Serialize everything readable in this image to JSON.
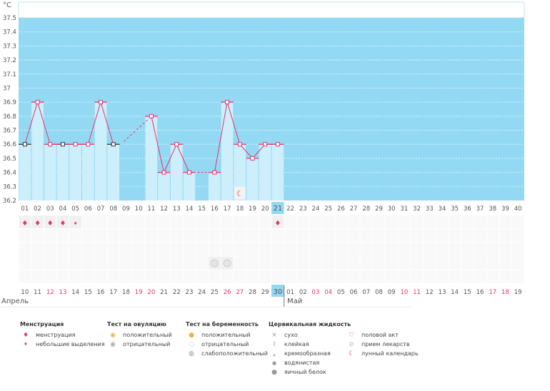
{
  "unit": "°C",
  "y_ticks": [
    "37.5",
    "37.4",
    "37.3",
    "37.2",
    "37.1",
    "37",
    "36.9",
    "36.8",
    "36.7",
    "36.6",
    "36.5",
    "36.4",
    "36.3",
    "36.2"
  ],
  "cycle_days": [
    "01",
    "02",
    "03",
    "04",
    "05",
    "06",
    "07",
    "08",
    "09",
    "10",
    "11",
    "12",
    "13",
    "14",
    "15",
    "16",
    "17",
    "18",
    "19",
    "20",
    "21",
    "22",
    "23",
    "24",
    "25",
    "26",
    "27",
    "28",
    "29",
    "30",
    "31",
    "32",
    "33",
    "34",
    "35",
    "36",
    "37",
    "38",
    "39",
    "40"
  ],
  "current_day_index": 20,
  "temperatures": [
    36.6,
    36.9,
    36.6,
    36.6,
    36.6,
    36.6,
    36.9,
    36.6,
    null,
    null,
    36.8,
    36.4,
    36.6,
    36.4,
    null,
    36.4,
    36.9,
    36.6,
    36.5,
    36.6,
    36.6
  ],
  "black_markers": [
    0,
    3,
    7
  ],
  "dates": [
    "10",
    "11",
    "12",
    "13",
    "14",
    "15",
    "16",
    "17",
    "18",
    "19",
    "20",
    "21",
    "22",
    "23",
    "24",
    "25",
    "26",
    "27",
    "28",
    "29",
    "30",
    "01",
    "02",
    "03",
    "04",
    "05",
    "06",
    "07",
    "08",
    "09",
    "10",
    "11",
    "12",
    "13",
    "14",
    "15",
    "16",
    "17",
    "18",
    "19"
  ],
  "weekend_indices": [
    2,
    3,
    9,
    10,
    16,
    17,
    23,
    24,
    30,
    31,
    37,
    38
  ],
  "months": [
    {
      "label": "Апрель"
    },
    {
      "label": "Май"
    }
  ],
  "row_icons": {
    "menstruation": [
      0,
      1,
      2,
      3,
      20
    ],
    "light_spotting": [
      4
    ],
    "medication": [
      15,
      16
    ],
    "moon": [
      17
    ]
  },
  "colors": {
    "plot_bg": "#94d9f3",
    "bar": "#cdeefb",
    "line": "#e8336d",
    "weekend": "#e8336d"
  },
  "legend": {
    "menstruation": {
      "title": "Менструация",
      "items": [
        "менструация",
        "небольшие выделения"
      ]
    },
    "ovulation": {
      "title": "Тест на овуляцию",
      "items": [
        "положительный",
        "отрицательный"
      ]
    },
    "pregnancy": {
      "title": "Тест на беременность",
      "items": [
        "положительный",
        "отрицательный",
        "слабоположительный"
      ]
    },
    "cervical": {
      "title": "Цервикальная жидкость",
      "items": [
        "сухо",
        "клейкая",
        "кремообразная",
        "водянистая",
        "яичный белок"
      ]
    },
    "other": {
      "items": [
        "половой акт",
        "прием лекарств",
        "лунный календарь"
      ]
    }
  }
}
